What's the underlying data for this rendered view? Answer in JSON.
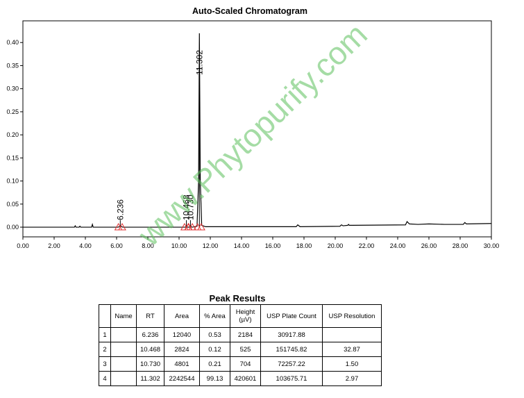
{
  "chart_data": {
    "type": "line",
    "title": "Auto-Scaled Chromatogram",
    "x": [
      0,
      3.3,
      3.35,
      3.4,
      3.6,
      3.65,
      3.7,
      4.4,
      4.45,
      4.5,
      6.1,
      6.236,
      6.4,
      10.4,
      10.468,
      10.55,
      10.65,
      10.73,
      10.85,
      11.15,
      11.25,
      11.302,
      11.36,
      11.45,
      11.7,
      17.5,
      17.6,
      17.75,
      20.3,
      20.4,
      20.5,
      20.8,
      20.85,
      20.9,
      24.5,
      24.6,
      24.75,
      25.3,
      26,
      27,
      28.2,
      28.3,
      28.4,
      30
    ],
    "values": [
      0,
      0,
      0.003,
      0,
      0,
      0.002,
      0,
      0,
      0.006,
      0,
      0,
      0.002,
      0,
      0,
      0.001,
      0,
      0,
      0.001,
      0,
      0.002,
      0.1,
      0.42,
      0.1,
      0.004,
      0.001,
      0.001,
      0.005,
      0.001,
      0.002,
      0.005,
      0.003,
      0.004,
      0.006,
      0.004,
      0.005,
      0.012,
      0.007,
      0.006,
      0.007,
      0.006,
      0.006,
      0.01,
      0.007,
      0.008
    ],
    "color": "#000000",
    "peaks": [
      {
        "x": 6.236,
        "label": "6.236"
      },
      {
        "x": 10.468,
        "label": "10.468"
      },
      {
        "x": 10.73,
        "label": "10.730"
      },
      {
        "x": 11.302,
        "label": "11.302"
      }
    ],
    "marker_color": "#e03030",
    "xlim": [
      0,
      30
    ],
    "xticks": [
      {
        "value": 0,
        "label": "0.00"
      },
      {
        "value": 2,
        "label": "2.00"
      },
      {
        "value": 4,
        "label": "4.00"
      },
      {
        "value": 6,
        "label": "6.00"
      },
      {
        "value": 8,
        "label": "8.00"
      },
      {
        "value": 10,
        "label": "10.00"
      },
      {
        "value": 12,
        "label": "12.00"
      },
      {
        "value": 14,
        "label": "14.00"
      },
      {
        "value": 16,
        "label": "16.00"
      },
      {
        "value": 18,
        "label": "18.00"
      },
      {
        "value": 20,
        "label": "20.00"
      },
      {
        "value": 22,
        "label": "22.00"
      },
      {
        "value": 24,
        "label": "24.00"
      },
      {
        "value": 26,
        "label": "26.00"
      },
      {
        "value": 28,
        "label": "28.00"
      },
      {
        "value": 30,
        "label": "30.00"
      }
    ],
    "ylim": [
      -0.021,
      0.447
    ],
    "yticks": [
      {
        "value": 0,
        "label": "0.00"
      },
      {
        "value": 0.05,
        "label": "0.05"
      },
      {
        "value": 0.1,
        "label": "0.10"
      },
      {
        "value": 0.15,
        "label": "0.15"
      },
      {
        "value": 0.2,
        "label": "0.20"
      },
      {
        "value": 0.25,
        "label": "0.25"
      },
      {
        "value": 0.3,
        "label": "0.30"
      },
      {
        "value": 0.35,
        "label": "0.35"
      },
      {
        "value": 0.4,
        "label": "0.40"
      }
    ]
  },
  "watermark": "www.Phytopurify.com",
  "table": {
    "title": "Peak Results",
    "header": [
      "",
      "Name",
      "RT",
      "Area",
      "% Area",
      "Height (µV)",
      "USP Plate Count",
      "USP Resolution"
    ],
    "rows": [
      [
        "1",
        "",
        "6.236",
        "12040",
        "0.53",
        "2184",
        "30917.88",
        ""
      ],
      [
        "2",
        "",
        "10.468",
        "2824",
        "0.12",
        "525",
        "151745.82",
        "32.87"
      ],
      [
        "3",
        "",
        "10.730",
        "4801",
        "0.21",
        "704",
        "72257.22",
        "1.50"
      ],
      [
        "4",
        "",
        "11.302",
        "2242544",
        "99.13",
        "420601",
        "103675.71",
        "2.97"
      ]
    ]
  }
}
